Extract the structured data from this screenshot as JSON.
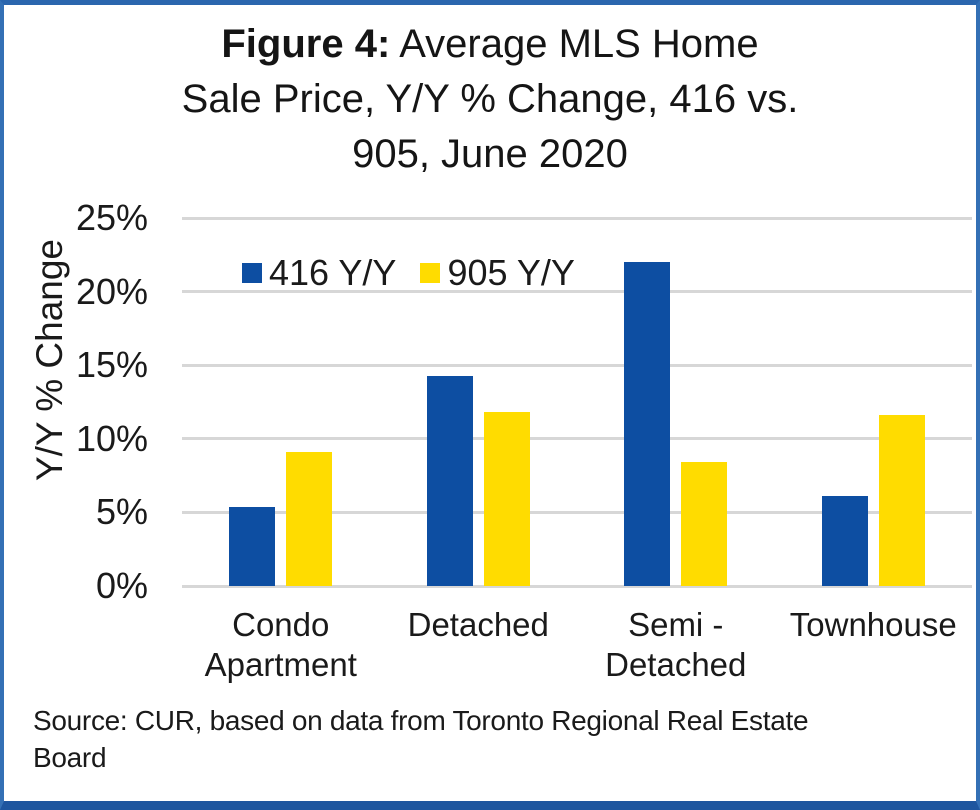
{
  "figure": {
    "title": {
      "bold": "Figure 4:",
      "line1_rest": " Average MLS Home",
      "line2": "Sale Price, Y/Y % Change, 416 vs.",
      "line3": "905, June 2020"
    },
    "source_lines": [
      "Source: CUR, based on data from Toronto Regional Real Estate",
      "Board"
    ]
  },
  "chart_data": {
    "type": "bar",
    "title": "Figure 4: Average MLS Home Sale Price, Y/Y % Change, 416 vs. 905, June 2020",
    "categories": [
      "Condo Apartment",
      "Detached",
      "Semi - Detached",
      "Townhouse"
    ],
    "category_label_lines": [
      [
        "Condo",
        "Apartment"
      ],
      [
        "Detached"
      ],
      [
        "Semi -",
        "Detached"
      ],
      [
        "Townhouse"
      ]
    ],
    "series": [
      {
        "name": "416 Y/Y",
        "color": "#0D4EA2",
        "values": [
          5.4,
          14.3,
          22.0,
          6.1
        ]
      },
      {
        "name": "905 Y/Y",
        "color": "#FFDC00",
        "values": [
          9.1,
          11.8,
          8.4,
          11.6
        ]
      }
    ],
    "xlabel": "",
    "ylabel": "Y/Y % Change",
    "ylim": [
      0,
      25
    ],
    "yticks": [
      {
        "value": 0,
        "label": "0%"
      },
      {
        "value": 5,
        "label": "5%"
      },
      {
        "value": 10,
        "label": "10%"
      },
      {
        "value": 15,
        "label": "15%"
      },
      {
        "value": 20,
        "label": "20%"
      },
      {
        "value": 25,
        "label": "25%"
      }
    ],
    "grid": true,
    "legend_position": "inside-top-left",
    "gridline_color": "#D7D7D7"
  },
  "frame": {
    "border_color": "#3470B5",
    "bottom_edge_color": "#1E569F",
    "background": "#ffffff"
  }
}
